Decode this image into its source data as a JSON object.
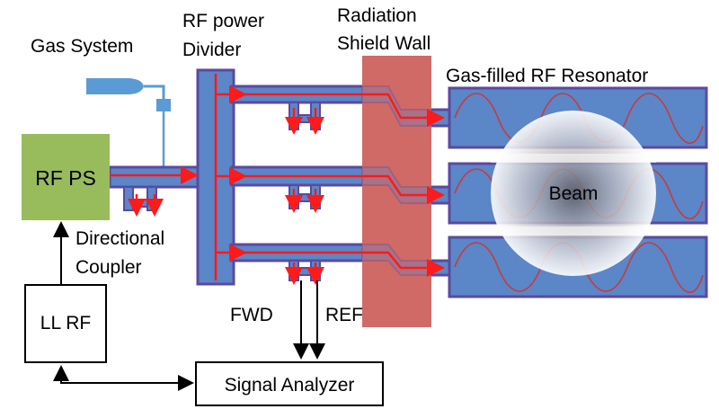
{
  "labels": {
    "gas_system": "Gas System",
    "rf_power_divider_line1": "RF power",
    "rf_power_divider_line2": "Divider",
    "radiation_line1": "Radiation",
    "radiation_line2": "Shield Wall",
    "resonator": "Gas-filled RF Resonator",
    "rf_ps": "RF PS",
    "directional_line1": "Directional",
    "directional_line2": "Coupler",
    "beam": "Beam",
    "ll_rf": "LL RF",
    "fwd": "FWD",
    "ref": "REF",
    "signal_analyzer": "Signal Analyzer"
  },
  "colors": {
    "waveguide_fill": "#5b86c8",
    "waveguide_border": "#5a4aa0",
    "rf_ps_fill": "#98bb5c",
    "wall_fill": "#d06a66",
    "arrow_red": "#ff1a1a",
    "wave_line": "#c83a3a",
    "beam_glow": "#ffffff"
  },
  "resonator_count": 3
}
